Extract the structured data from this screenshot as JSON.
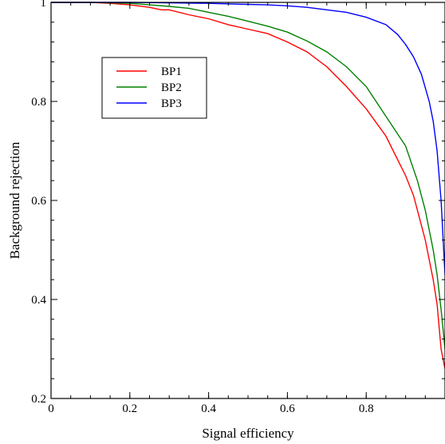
{
  "chart_data": {
    "type": "line",
    "xlabel": "Signal efficiency",
    "ylabel": "Background rejection",
    "xlim": [
      0,
      1
    ],
    "ylim": [
      0.2,
      1
    ],
    "grid": false,
    "legend_placement": "top-left",
    "xticks": [
      {
        "value": 0,
        "label": "0"
      },
      {
        "value": 0.2,
        "label": "0.2"
      },
      {
        "value": 0.4,
        "label": "0.4"
      },
      {
        "value": 0.6,
        "label": "0.6"
      },
      {
        "value": 0.8,
        "label": "0.8"
      }
    ],
    "yticks": [
      {
        "value": 0.2,
        "label": "0.2"
      },
      {
        "value": 0.4,
        "label": "0.4"
      },
      {
        "value": 0.6,
        "label": "0.6"
      },
      {
        "value": 0.8,
        "label": "0.8"
      },
      {
        "value": 1,
        "label": "1"
      }
    ],
    "series": [
      {
        "name": "BP1",
        "color": "#ff0000",
        "points": [
          [
            0.0,
            1.0
          ],
          [
            0.05,
            1.0
          ],
          [
            0.1,
            1.0
          ],
          [
            0.15,
            0.998
          ],
          [
            0.2,
            0.995
          ],
          [
            0.25,
            0.99
          ],
          [
            0.28,
            0.985
          ],
          [
            0.3,
            0.985
          ],
          [
            0.35,
            0.975
          ],
          [
            0.4,
            0.967
          ],
          [
            0.45,
            0.955
          ],
          [
            0.5,
            0.946
          ],
          [
            0.55,
            0.937
          ],
          [
            0.6,
            0.92
          ],
          [
            0.65,
            0.9
          ],
          [
            0.7,
            0.87
          ],
          [
            0.75,
            0.83
          ],
          [
            0.8,
            0.785
          ],
          [
            0.85,
            0.73
          ],
          [
            0.9,
            0.65
          ],
          [
            0.92,
            0.61
          ],
          [
            0.95,
            0.52
          ],
          [
            0.97,
            0.44
          ],
          [
            0.98,
            0.39
          ],
          [
            0.99,
            0.3
          ],
          [
            1.0,
            0.26
          ]
        ]
      },
      {
        "name": "BP2",
        "color": "#008000",
        "points": [
          [
            0.0,
            1.0
          ],
          [
            0.05,
            1.0
          ],
          [
            0.1,
            1.0
          ],
          [
            0.15,
            0.999
          ],
          [
            0.2,
            0.998
          ],
          [
            0.25,
            0.995
          ],
          [
            0.3,
            0.992
          ],
          [
            0.35,
            0.988
          ],
          [
            0.4,
            0.98
          ],
          [
            0.45,
            0.972
          ],
          [
            0.5,
            0.962
          ],
          [
            0.55,
            0.952
          ],
          [
            0.6,
            0.94
          ],
          [
            0.65,
            0.922
          ],
          [
            0.7,
            0.9
          ],
          [
            0.75,
            0.87
          ],
          [
            0.8,
            0.83
          ],
          [
            0.85,
            0.77
          ],
          [
            0.9,
            0.71
          ],
          [
            0.93,
            0.64
          ],
          [
            0.95,
            0.58
          ],
          [
            0.97,
            0.5
          ],
          [
            0.98,
            0.45
          ],
          [
            0.99,
            0.38
          ],
          [
            1.0,
            0.3
          ]
        ]
      },
      {
        "name": "BP3",
        "color": "#0000ff",
        "points": [
          [
            0.0,
            1.0
          ],
          [
            0.1,
            1.0
          ],
          [
            0.2,
            1.0
          ],
          [
            0.3,
            0.999
          ],
          [
            0.4,
            0.998
          ],
          [
            0.5,
            0.996
          ],
          [
            0.55,
            0.995
          ],
          [
            0.6,
            0.993
          ],
          [
            0.65,
            0.99
          ],
          [
            0.7,
            0.985
          ],
          [
            0.75,
            0.98
          ],
          [
            0.8,
            0.97
          ],
          [
            0.85,
            0.955
          ],
          [
            0.88,
            0.935
          ],
          [
            0.9,
            0.915
          ],
          [
            0.92,
            0.89
          ],
          [
            0.94,
            0.855
          ],
          [
            0.96,
            0.8
          ],
          [
            0.97,
            0.76
          ],
          [
            0.98,
            0.7
          ],
          [
            0.99,
            0.6
          ],
          [
            1.0,
            0.45
          ]
        ]
      }
    ]
  }
}
